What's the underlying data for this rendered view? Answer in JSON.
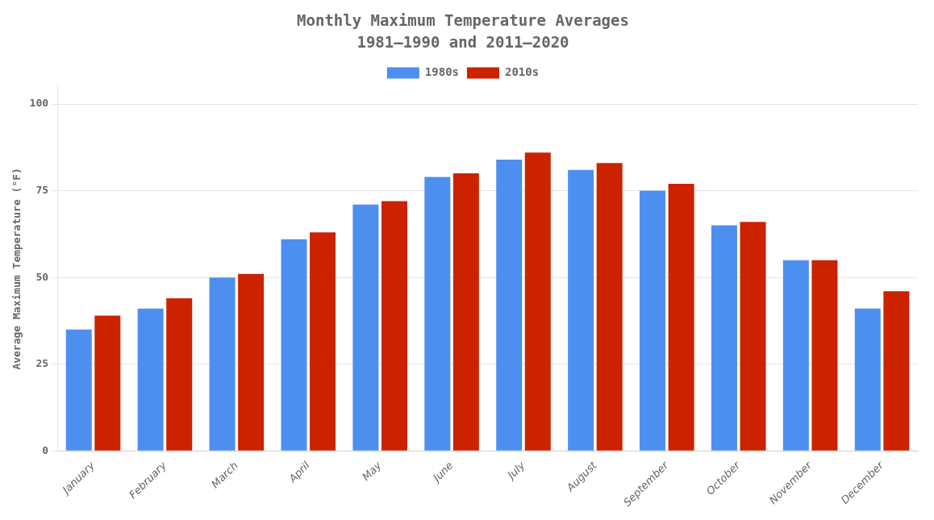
{
  "chart_data": {
    "type": "bar",
    "title": "Monthly Maximum Temperature Averages",
    "subtitle": "1981–1990 and 2011–2020",
    "ylabel": "Average Maximum Temperature (°F)",
    "categories": [
      "January",
      "February",
      "March",
      "April",
      "May",
      "June",
      "July",
      "August",
      "September",
      "October",
      "November",
      "December"
    ],
    "series": [
      {
        "name": "1980s",
        "color": "#4d8fef",
        "values": [
          35,
          41,
          50,
          61,
          71,
          79,
          84,
          81,
          75,
          65,
          55,
          41
        ]
      },
      {
        "name": "2010s",
        "color": "#cc2200",
        "values": [
          39,
          44,
          51,
          63,
          72,
          80,
          86,
          83,
          77,
          66,
          55,
          46
        ]
      }
    ],
    "ylim": [
      0,
      105
    ],
    "yticks": [
      0,
      25,
      50,
      75,
      100
    ],
    "grid": true,
    "legend": "top"
  }
}
